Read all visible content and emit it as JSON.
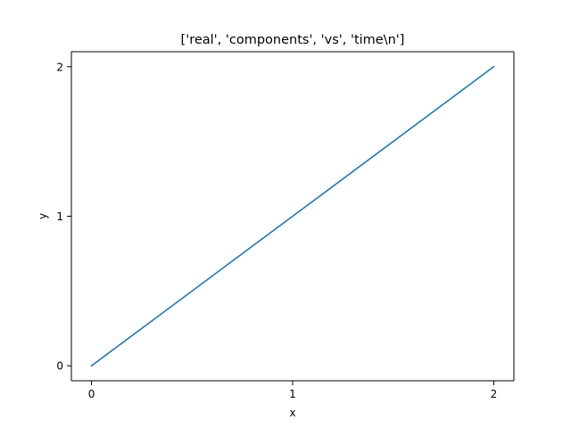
{
  "chart_data": {
    "type": "line",
    "title": "['real', 'components', 'vs', 'time\\n']",
    "xlabel": "x",
    "ylabel": "y",
    "xlim": [
      -0.1,
      2.1
    ],
    "ylim": [
      -0.1,
      2.1
    ],
    "x_ticks": [
      0,
      1,
      2
    ],
    "y_ticks": [
      0,
      1,
      2
    ],
    "x_tick_labels": [
      "0",
      "1",
      "2"
    ],
    "y_tick_labels": [
      "0",
      "1",
      "2"
    ],
    "grid": false,
    "series": [
      {
        "color": "#1f77b4",
        "x": [
          0,
          1,
          2
        ],
        "y": [
          0,
          1,
          2
        ]
      }
    ]
  }
}
